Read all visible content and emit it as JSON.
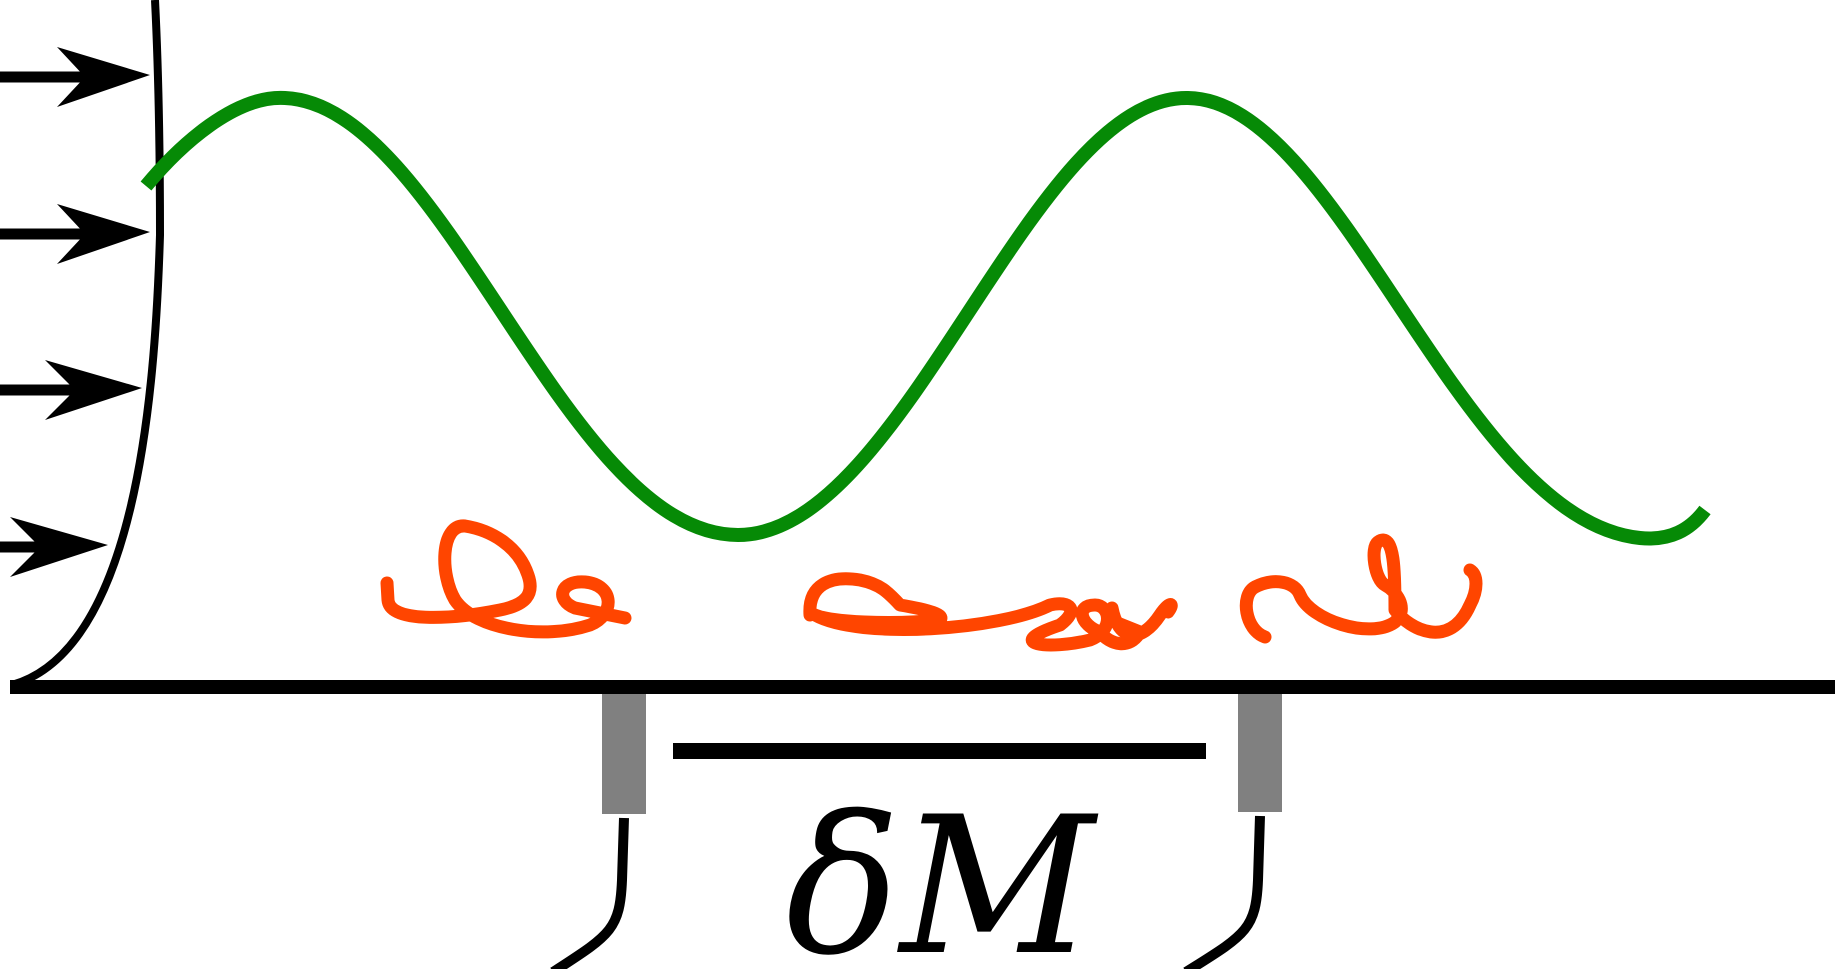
{
  "diagram": {
    "label": "δM",
    "colors": {
      "wave": "#068a06",
      "squiggle": "#ff4500",
      "lines": "#000000",
      "sensor": "#808080"
    },
    "icons": {
      "arrows": "arrow-right-icon",
      "wave": "sine-wave",
      "squiggle": "handwritten-squiggle",
      "sensors": "probe-icon"
    }
  }
}
